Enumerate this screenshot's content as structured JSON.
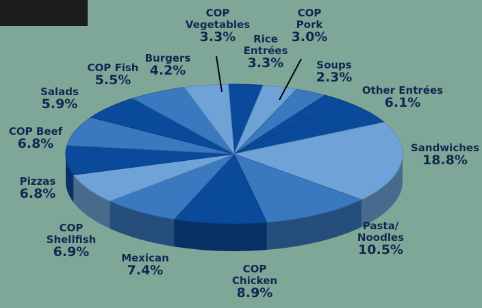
{
  "chart_data": {
    "type": "pie",
    "title": "",
    "slices": [
      {
        "label": [
          "COP",
          "Vegetables"
        ],
        "value": 3.3,
        "display": "3.3%"
      },
      {
        "label": [
          "Rice",
          "Entrées"
        ],
        "value": 3.3,
        "display": "3.3%"
      },
      {
        "label": [
          "COP",
          "Pork"
        ],
        "value": 3.0,
        "display": "3.0%"
      },
      {
        "label": [
          "Soups"
        ],
        "value": 2.3,
        "display": "2.3%"
      },
      {
        "label": [
          "Other Entrées"
        ],
        "value": 6.1,
        "display": "6.1%"
      },
      {
        "label": [
          "Sandwiches"
        ],
        "value": 18.8,
        "display": "18.8%"
      },
      {
        "label": [
          "Pasta/",
          "Noodles"
        ],
        "value": 10.5,
        "display": "10.5%"
      },
      {
        "label": [
          "COP",
          "Chicken"
        ],
        "value": 8.9,
        "display": "8.9%"
      },
      {
        "label": [
          "Mexican"
        ],
        "value": 7.4,
        "display": "7.4%"
      },
      {
        "label": [
          "COP",
          "Shellfish"
        ],
        "value": 6.9,
        "display": "6.9%"
      },
      {
        "label": [
          "Pizzas"
        ],
        "value": 6.8,
        "display": "6.8%"
      },
      {
        "label": [
          "COP Beef"
        ],
        "value": 6.8,
        "display": "6.8%"
      },
      {
        "label": [
          "Salads"
        ],
        "value": 5.9,
        "display": "5.9%"
      },
      {
        "label": [
          "COP Fish"
        ],
        "value": 5.5,
        "display": "5.5%"
      },
      {
        "label": [
          "Burgers"
        ],
        "value": 4.2,
        "display": "4.2%"
      }
    ],
    "style": "3d-tilted",
    "colors": {
      "background": "#7fa797",
      "slice_dark": "#0a4a9a",
      "slice_mid": "#3a78bf",
      "slice_light": "#6fa3d8",
      "side": "#12509e",
      "label_text": "#102850"
    }
  }
}
